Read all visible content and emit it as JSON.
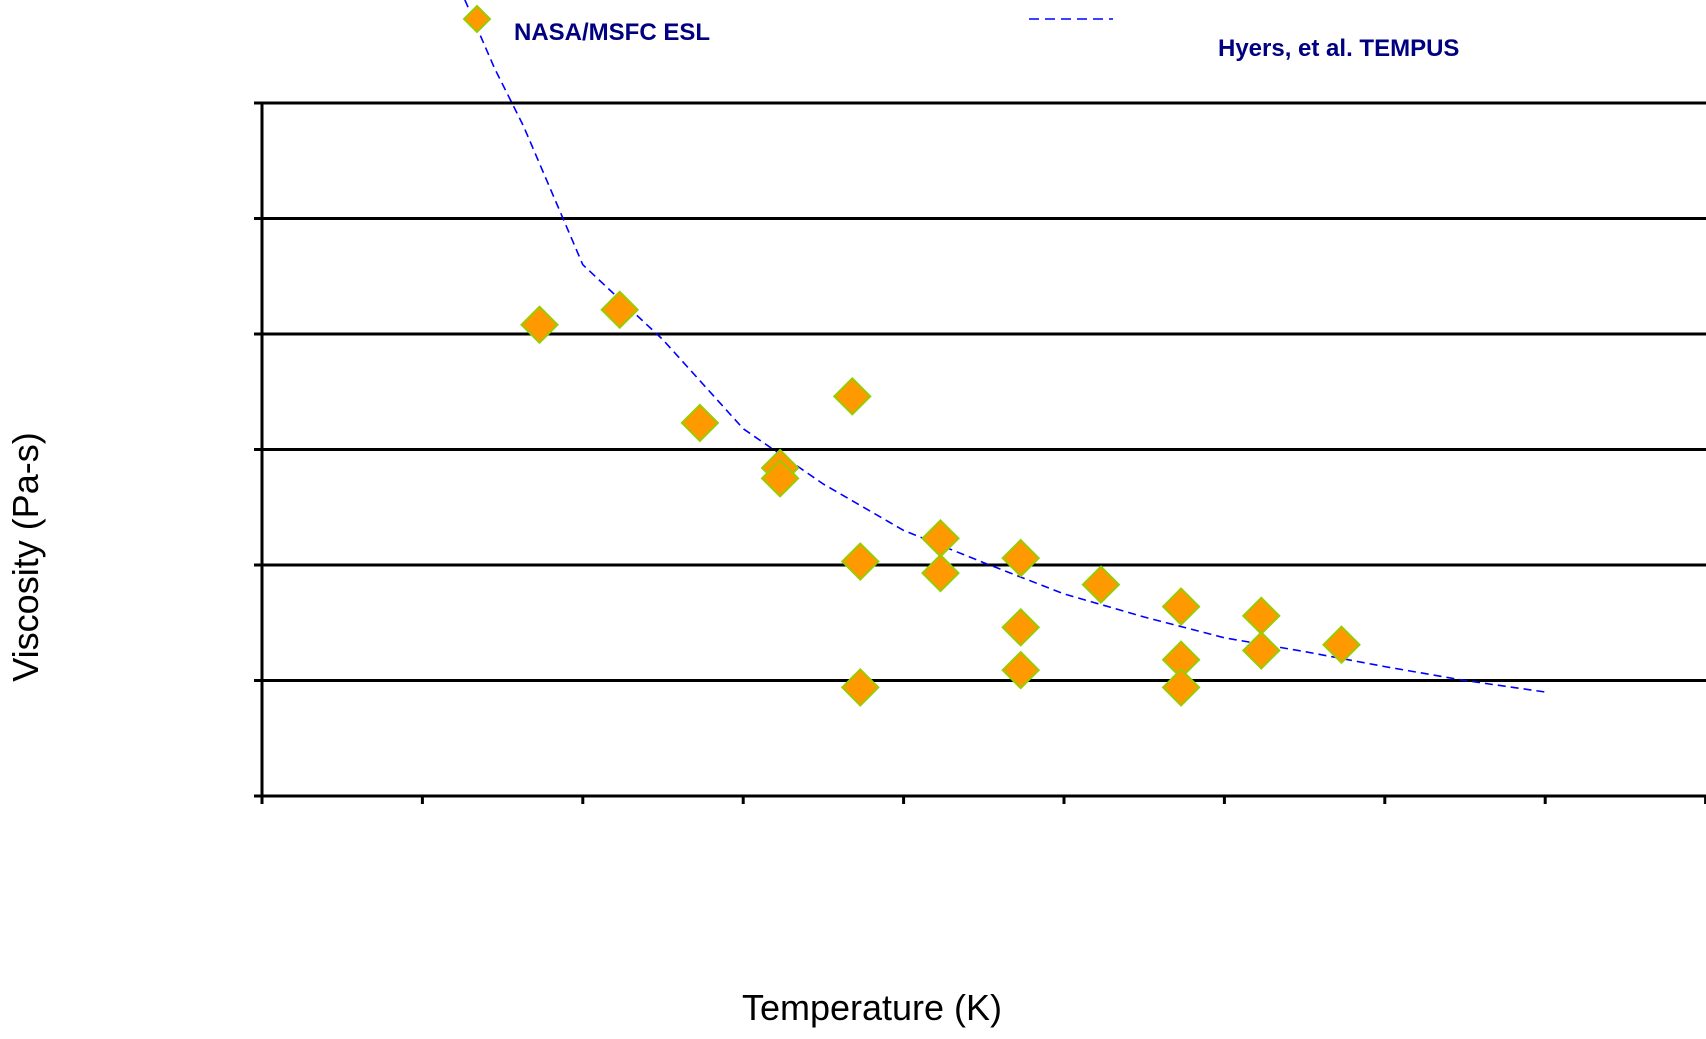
{
  "chart_data": {
    "type": "scatter",
    "title": "",
    "xlabel": "Temperature (K)",
    "ylabel": "Viscosity (Pa-s)",
    "x_ticks_count": 9,
    "y_gridlines": 6,
    "grid": true,
    "legend_placement": "top",
    "series": [
      {
        "name": "NASA/MSFC ESL",
        "kind": "scatter",
        "marker": "diamond",
        "color": "#FF9900",
        "edge_color": "#99CC00",
        "points": [
          {
            "x": 0.173,
            "y": 4.08
          },
          {
            "x": 0.223,
            "y": 4.21
          },
          {
            "x": 0.273,
            "y": 3.23
          },
          {
            "x": 0.323,
            "y": 2.84
          },
          {
            "x": 0.323,
            "y": 2.75
          },
          {
            "x": 0.368,
            "y": 3.46
          },
          {
            "x": 0.373,
            "y": 2.03
          },
          {
            "x": 0.373,
            "y": 0.94
          },
          {
            "x": 0.423,
            "y": 2.23
          },
          {
            "x": 0.423,
            "y": 1.93
          },
          {
            "x": 0.473,
            "y": 2.06
          },
          {
            "x": 0.473,
            "y": 1.46
          },
          {
            "x": 0.473,
            "y": 1.09
          },
          {
            "x": 0.523,
            "y": 1.83
          },
          {
            "x": 0.573,
            "y": 1.64
          },
          {
            "x": 0.573,
            "y": 1.18
          },
          {
            "x": 0.573,
            "y": 0.94
          },
          {
            "x": 0.623,
            "y": 1.56
          },
          {
            "x": 0.623,
            "y": 1.26
          },
          {
            "x": 0.673,
            "y": 1.31
          }
        ]
      },
      {
        "name": "Hyers, et al. TEMPUS",
        "kind": "line",
        "style": "dashed",
        "color": "#0000FF",
        "points": [
          {
            "x": 0.12,
            "y": 7.1
          },
          {
            "x": 0.145,
            "y": 6.3
          },
          {
            "x": 0.163,
            "y": 5.8
          },
          {
            "x": 0.2,
            "y": 4.6
          },
          {
            "x": 0.25,
            "y": 3.95
          },
          {
            "x": 0.3,
            "y": 3.18
          },
          {
            "x": 0.35,
            "y": 2.7
          },
          {
            "x": 0.4,
            "y": 2.3
          },
          {
            "x": 0.45,
            "y": 2.02
          },
          {
            "x": 0.5,
            "y": 1.75
          },
          {
            "x": 0.55,
            "y": 1.55
          },
          {
            "x": 0.6,
            "y": 1.37
          },
          {
            "x": 0.65,
            "y": 1.25
          },
          {
            "x": 0.7,
            "y": 1.12
          },
          {
            "x": 0.75,
            "y": 1.0
          },
          {
            "x": 0.8,
            "y": 0.9
          }
        ]
      }
    ]
  }
}
